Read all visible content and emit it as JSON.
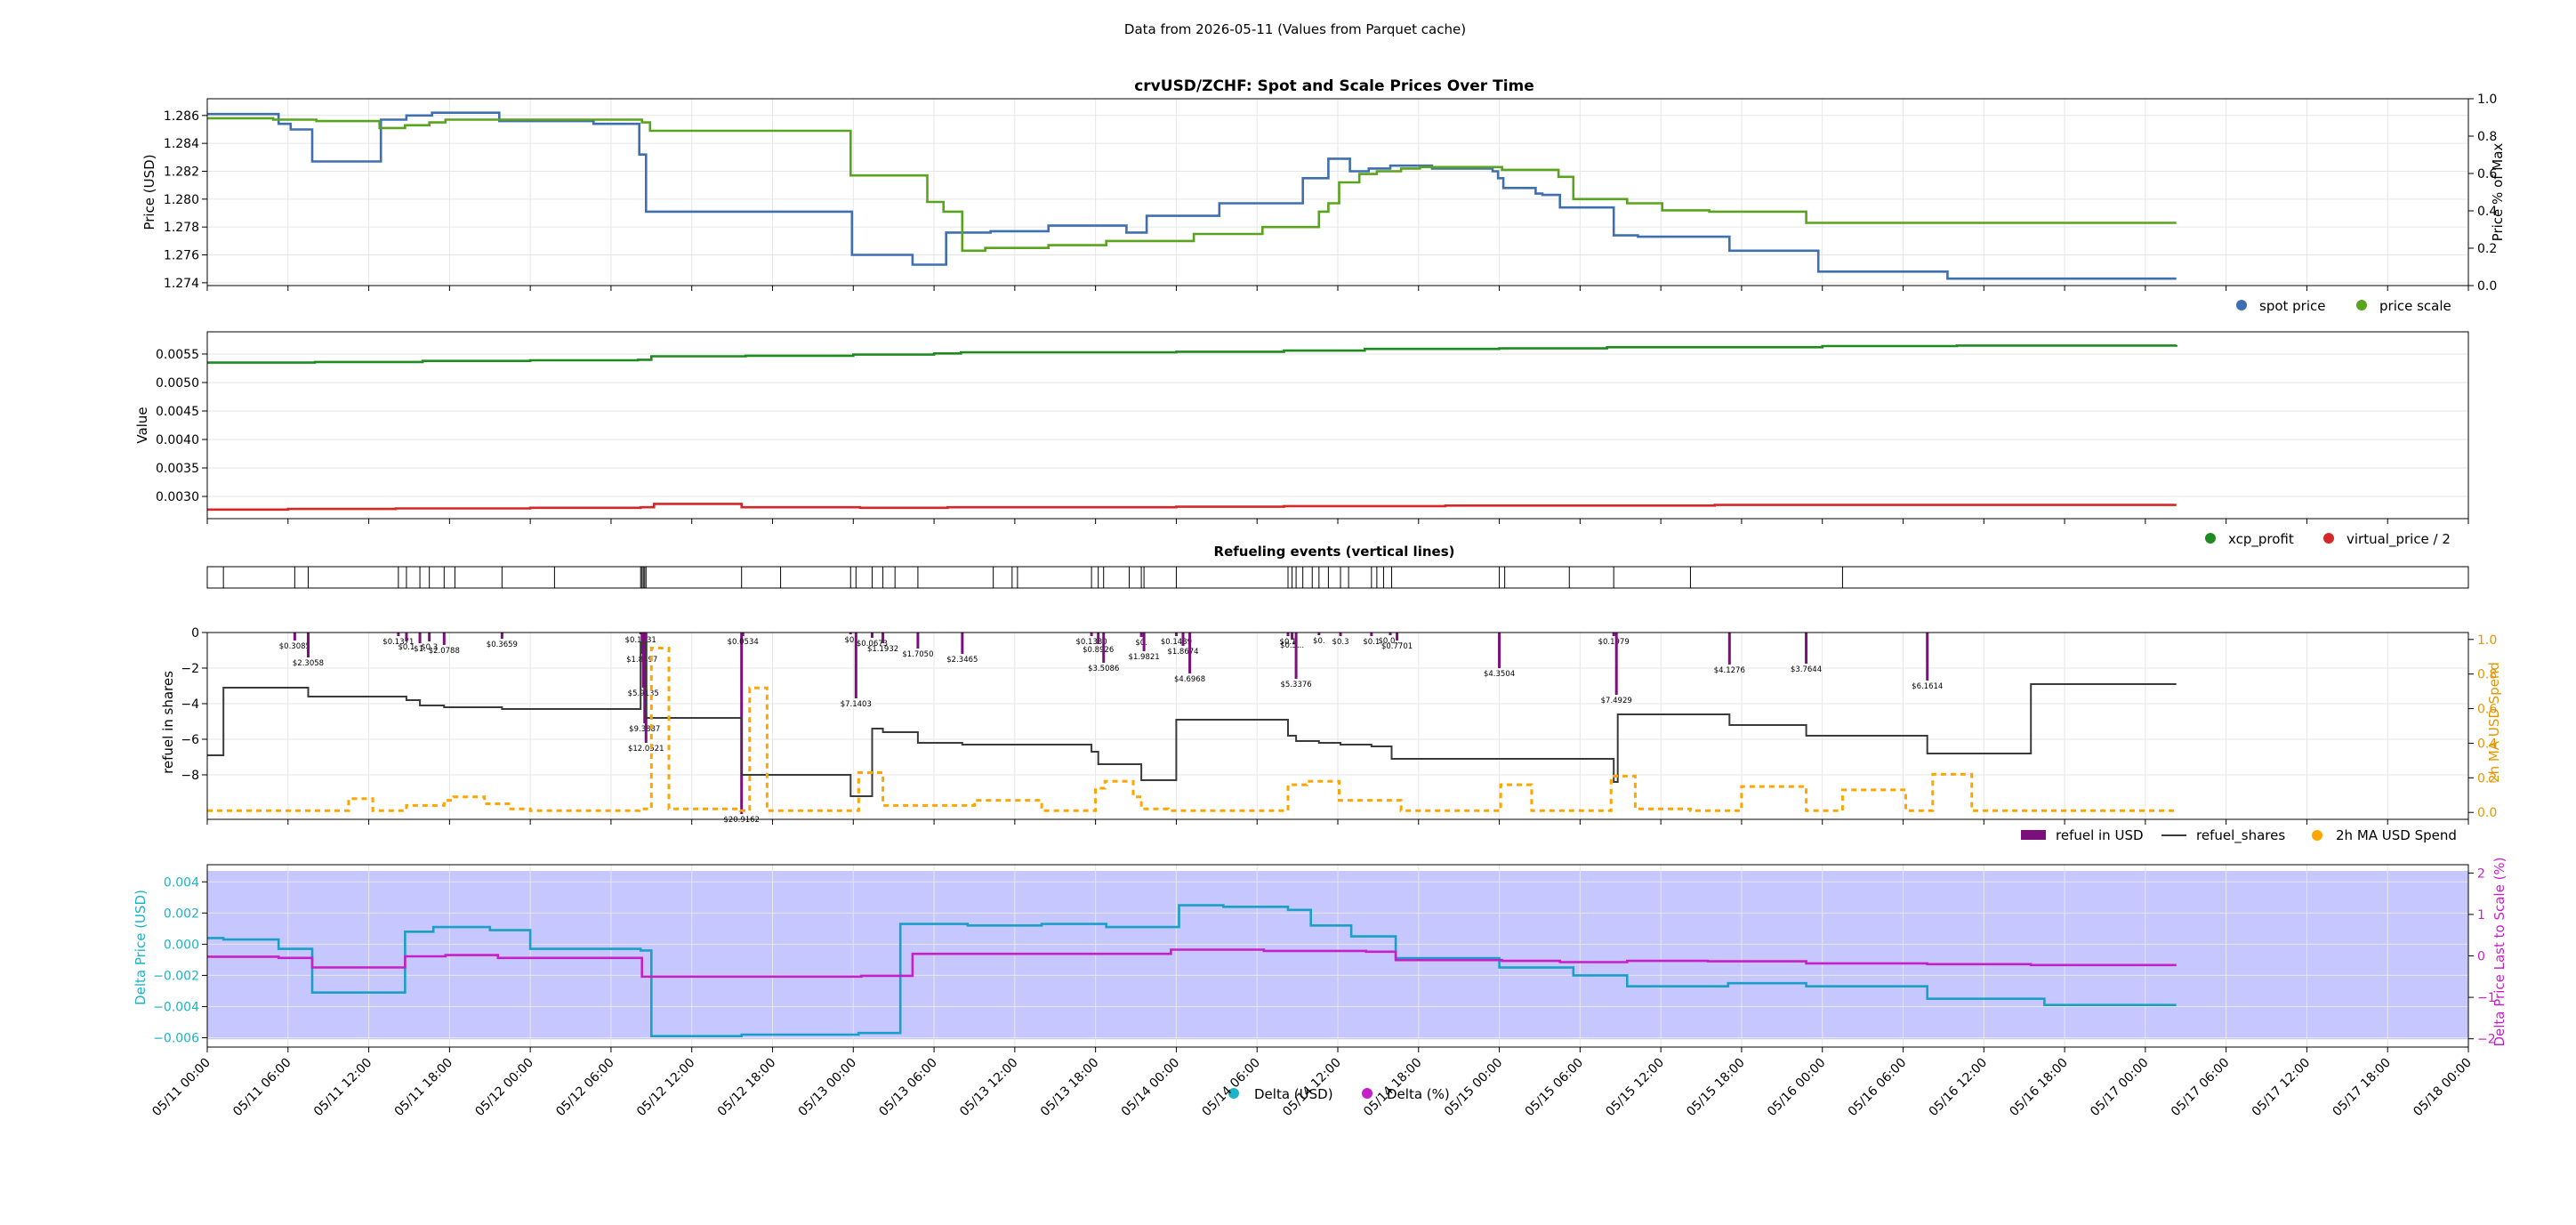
{
  "suptitle": "Data from 2026-05-11 (Values from Parquet cache)",
  "x_axis": {
    "ticks": [
      "05/11 00:00",
      "05/11 06:00",
      "05/11 12:00",
      "05/11 18:00",
      "05/12 00:00",
      "05/12 06:00",
      "05/12 12:00",
      "05/12 18:00",
      "05/13 00:00",
      "05/13 06:00",
      "05/13 12:00",
      "05/13 18:00",
      "05/14 00:00",
      "05/14 06:00",
      "05/14 12:00",
      "05/14 18:00",
      "05/15 00:00",
      "05/15 06:00",
      "05/15 12:00",
      "05/15 18:00",
      "05/16 00:00",
      "05/16 06:00",
      "05/16 12:00",
      "05/16 18:00",
      "05/17 00:00",
      "05/17 06:00",
      "05/17 12:00",
      "05/17 18:00",
      "05/18 00:00"
    ],
    "range_hours": [
      0,
      168
    ]
  },
  "chart_data": [
    {
      "type": "line",
      "title": "crvUSD/ZCHF: Spot and Scale Prices Over Time",
      "ylabel": "Price (USD)",
      "y2label": "Price % of Max",
      "ylim": [
        1.2738,
        1.2872
      ],
      "yticks": [
        "1.274",
        "1.276",
        "1.278",
        "1.280",
        "1.282",
        "1.284",
        "1.286"
      ],
      "y2lim": [
        0,
        1
      ],
      "y2ticks": [
        "0.0",
        "0.2",
        "0.4",
        "0.6",
        "0.8",
        "1.0"
      ],
      "grid": true,
      "legend": "bottom-right",
      "series": [
        {
          "name": "spot price",
          "color": "#3f6fb0",
          "step": true,
          "x": [
            0,
            5.3,
            6.2,
            7.8,
            12.9,
            14.8,
            16.7,
            21.7,
            28.7,
            32.1,
            32.6,
            39.6,
            47.9,
            48.6,
            49.2,
            52.4,
            54.9,
            58.2,
            62.5,
            63.9,
            66.5,
            68.3,
            69.8,
            71.2,
            75.2,
            81.4,
            83.3,
            84.9,
            86.3,
            87.9,
            91.0,
            95.5,
            95.9,
            96.3,
            96.9,
            98.7,
            99.2,
            100.5,
            104.5,
            106.3,
            113.1,
            119.7,
            129.3,
            135.5,
            146.3
          ],
          "y": [
            1.2861,
            1.2854,
            1.285,
            1.2827,
            1.2857,
            1.286,
            1.2862,
            1.2856,
            1.2854,
            1.2832,
            1.2791,
            1.2791,
            1.276,
            1.276,
            1.276,
            1.2753,
            1.2776,
            1.2777,
            1.2781,
            1.2781,
            1.2781,
            1.2776,
            1.2788,
            1.2788,
            1.2797,
            1.2815,
            1.2829,
            1.282,
            1.2822,
            1.2824,
            1.2822,
            1.282,
            1.2815,
            1.2808,
            1.2808,
            1.2804,
            1.2803,
            1.2794,
            1.2774,
            1.2773,
            1.2763,
            1.2748,
            1.2743,
            1.2743,
            1.2743
          ]
        },
        {
          "name": "price scale",
          "color": "#5aa31e",
          "step": true,
          "x": [
            0,
            4.9,
            8.1,
            12.8,
            14.7,
            16.5,
            17.7,
            21.5,
            32.3,
            32.9,
            39.7,
            47.8,
            53.5,
            54.7,
            56.1,
            57.8,
            62.5,
            66.8,
            70.2,
            73.3,
            78.4,
            82.6,
            83.3,
            84.1,
            85.6,
            86.9,
            88.7,
            90.1,
            96.2,
            100.4,
            101.5,
            105.5,
            108.1,
            111.6,
            118.8,
            135.5,
            146.3
          ],
          "y": [
            1.2858,
            1.2857,
            1.2856,
            1.2851,
            1.2853,
            1.2855,
            1.2857,
            1.2857,
            1.2855,
            1.2849,
            1.2849,
            1.2817,
            1.2798,
            1.2791,
            1.2763,
            1.2765,
            1.2767,
            1.277,
            1.277,
            1.2775,
            1.278,
            1.2791,
            1.2797,
            1.2812,
            1.2818,
            1.282,
            1.2822,
            1.2823,
            1.2821,
            1.2816,
            1.28,
            1.2797,
            1.2792,
            1.2791,
            1.2783,
            1.2783,
            1.2783
          ]
        }
      ]
    },
    {
      "type": "line",
      "ylabel": "Value",
      "ylim": [
        0.00261,
        0.00589
      ],
      "yticks": [
        "0.0030",
        "0.0035",
        "0.0040",
        "0.0045",
        "0.0050",
        "0.0055"
      ],
      "grid": true,
      "legend": "bottom-right",
      "series": [
        {
          "name": "xcp_profit",
          "color": "#1f8a1f",
          "step": true,
          "x": [
            0,
            8,
            16,
            24,
            32,
            33,
            40,
            48,
            54,
            56,
            64,
            72,
            80,
            86,
            96,
            104,
            112,
            120,
            130,
            146.3
          ],
          "y": [
            0.00535,
            0.00536,
            0.00538,
            0.00539,
            0.0054,
            0.00546,
            0.00547,
            0.00549,
            0.00551,
            0.00553,
            0.00553,
            0.00554,
            0.00556,
            0.00559,
            0.0056,
            0.00562,
            0.00562,
            0.00564,
            0.00565,
            0.00566
          ]
        },
        {
          "name": "virtual_price / 2",
          "color": "#d62728",
          "step": true,
          "x": [
            0,
            6,
            14,
            24,
            32.2,
            33.2,
            39.7,
            48.5,
            55,
            64,
            72,
            80,
            86,
            92,
            96,
            100,
            112,
            146.3
          ],
          "y": [
            0.00277,
            0.00278,
            0.00279,
            0.0028,
            0.00281,
            0.00287,
            0.00281,
            0.0028,
            0.00281,
            0.00281,
            0.00282,
            0.00283,
            0.00283,
            0.00284,
            0.00284,
            0.00284,
            0.00285,
            0.00285
          ]
        }
      ]
    },
    {
      "type": "events",
      "title": "Refueling events (vertical lines)",
      "x": [
        1.2,
        6.5,
        7.5,
        14.2,
        14.8,
        15.8,
        16.5,
        17.6,
        18.4,
        21.9,
        25.8,
        32.2,
        32.3,
        32.4,
        32.5,
        32.6,
        39.7,
        42.6,
        47.8,
        48.2,
        49.4,
        50.2,
        51.1,
        52.8,
        58.4,
        59.8,
        60.2,
        65.7,
        66.2,
        66.6,
        68.5,
        69.4,
        69.6,
        72.0,
        80.3,
        80.6,
        80.9,
        81.4,
        82.1,
        82.6,
        83.3,
        84.2,
        84.8,
        86.5,
        86.9,
        87.4,
        88.0,
        96.0,
        96.4,
        101.2,
        104.5,
        110.2,
        121.5
      ]
    },
    {
      "type": "bar",
      "ylabel": "refuel in shares",
      "y2label": "2h MA USD Spend",
      "ylim": [
        -10.5,
        0
      ],
      "yticks": [
        "0",
        "−2",
        "−4",
        "−6",
        "−8"
      ],
      "y2lim": [
        -0.04,
        1.04
      ],
      "y2ticks": [
        "0.0",
        "0.2",
        "0.4",
        "0.6",
        "0.8",
        "1.0"
      ],
      "grid": true,
      "legend": "bottom-right",
      "bar_color": "#7b0f7b",
      "refuel_bars": [
        {
          "x": 6.5,
          "depth": -0.45,
          "label": "$0.3085"
        },
        {
          "x": 7.5,
          "depth": -1.4,
          "label": "$2.3058"
        },
        {
          "x": 14.2,
          "depth": -0.2,
          "label": "$0.1371"
        },
        {
          "x": 14.8,
          "depth": -0.5,
          "label": "$0.1"
        },
        {
          "x": 15.8,
          "depth": -0.6,
          "label": "$1."
        },
        {
          "x": 16.5,
          "depth": -0.5,
          "label": "$0.3"
        },
        {
          "x": 17.6,
          "depth": -0.7,
          "label": "$2.0788"
        },
        {
          "x": 21.9,
          "depth": -0.35,
          "label": "$0.3659"
        },
        {
          "x": 32.2,
          "depth": -0.1,
          "label": "$0.1631"
        },
        {
          "x": 32.3,
          "depth": -1.2,
          "label": "$1.8497"
        },
        {
          "x": 32.4,
          "depth": -3.1,
          "label": "$5.9135"
        },
        {
          "x": 32.5,
          "depth": -5.1,
          "label": "$9.3887"
        },
        {
          "x": 32.6,
          "depth": -6.2,
          "label": "$12.0521"
        },
        {
          "x": 39.7,
          "depth": -10.2,
          "label": "$20.9162"
        },
        {
          "x": 39.8,
          "depth": -0.2,
          "label": "$0.0534"
        },
        {
          "x": 47.8,
          "depth": -0.1,
          "label": "$0."
        },
        {
          "x": 48.2,
          "depth": -3.7,
          "label": "$7.1403"
        },
        {
          "x": 49.4,
          "depth": -0.3,
          "label": "$0.0673"
        },
        {
          "x": 50.2,
          "depth": -0.6,
          "label": "$1.1932"
        },
        {
          "x": 52.8,
          "depth": -0.9,
          "label": "$1.7050"
        },
        {
          "x": 56.1,
          "depth": -1.2,
          "label": "$2.3465"
        },
        {
          "x": 65.7,
          "depth": -0.2,
          "label": "$0.1330"
        },
        {
          "x": 66.2,
          "depth": -0.65,
          "label": "$0.8926"
        },
        {
          "x": 66.6,
          "depth": -1.7,
          "label": "$3.5086"
        },
        {
          "x": 69.4,
          "depth": -0.25,
          "label": "$0."
        },
        {
          "x": 69.6,
          "depth": -1.05,
          "label": "$1.9821"
        },
        {
          "x": 72.0,
          "depth": -0.2,
          "label": "$0.1489"
        },
        {
          "x": 72.5,
          "depth": -0.75,
          "label": "$1.8674"
        },
        {
          "x": 73.0,
          "depth": -2.3,
          "label": "$4.6968"
        },
        {
          "x": 80.3,
          "depth": -0.2,
          "label": "$0.1"
        },
        {
          "x": 80.6,
          "depth": -0.4,
          "label": "$0.5..."
        },
        {
          "x": 80.9,
          "depth": -2.6,
          "label": "$5.3376"
        },
        {
          "x": 82.6,
          "depth": -0.15,
          "label": "$0."
        },
        {
          "x": 84.2,
          "depth": -0.2,
          "label": "$0.3"
        },
        {
          "x": 86.5,
          "depth": -0.2,
          "label": "$0.1"
        },
        {
          "x": 87.9,
          "depth": -0.15,
          "label": "$0.0..."
        },
        {
          "x": 88.4,
          "depth": -0.45,
          "label": "$0.7701"
        },
        {
          "x": 96.0,
          "depth": -2.0,
          "label": "$4.3504"
        },
        {
          "x": 104.5,
          "depth": -0.2,
          "label": "$0.1979"
        },
        {
          "x": 104.7,
          "depth": -3.5,
          "label": "$7.4929"
        },
        {
          "x": 113.1,
          "depth": -1.8,
          "label": "$4.1276"
        },
        {
          "x": 118.8,
          "depth": -1.75,
          "label": "$3.7644"
        },
        {
          "x": 127.8,
          "depth": -2.7,
          "label": "$6.1614"
        }
      ],
      "series": [
        {
          "name": "refuel in USD",
          "color": "#7b0f7b"
        },
        {
          "name": "refuel_shares",
          "color": "#3a3a3a",
          "step": true,
          "x": [
            0,
            1.2,
            6.5,
            7.5,
            14.2,
            14.8,
            15.8,
            16.5,
            17.6,
            21.9,
            22.2,
            32.2,
            32.6,
            39.7,
            47.8,
            49.4,
            50.2,
            52.8,
            56.1,
            65.7,
            66.2,
            69.4,
            72.0,
            78.1,
            80.3,
            80.9,
            82.6,
            84.2,
            86.5,
            88.0,
            96.0,
            104.5,
            104.8,
            113.1,
            118.8,
            127.8,
            135.5,
            146.3
          ],
          "y": [
            -6.9,
            -3.1,
            -3.1,
            -3.6,
            -3.6,
            -3.8,
            -4.1,
            -4.1,
            -4.2,
            -4.3,
            -4.3,
            -0.55,
            -4.8,
            -8.0,
            -9.2,
            -5.4,
            -5.6,
            -6.2,
            -6.3,
            -6.7,
            -7.4,
            -8.3,
            -4.9,
            -4.9,
            -5.8,
            -6.1,
            -6.2,
            -6.3,
            -6.4,
            -7.1,
            -7.1,
            -8.4,
            -4.6,
            -5.2,
            -5.8,
            -6.8,
            -2.9,
            -2.9
          ]
        },
        {
          "name": "2h MA USD Spend",
          "color": "#ffa500",
          "step": true,
          "x": [
            0,
            10.5,
            12.3,
            14.8,
            17.6,
            18.3,
            20.6,
            22.4,
            24,
            32.1,
            33,
            34.3,
            39.6,
            40.3,
            41.6,
            43.9,
            48.4,
            50.2,
            52.4,
            57,
            62,
            66,
            66.7,
            68.8,
            69.4,
            71.4,
            72.6,
            80.3,
            81.7,
            84.1,
            88.7,
            96.1,
            98.4,
            104.3,
            106.1,
            110.2,
            114,
            118.8,
            121.5,
            126.2,
            128.2,
            131.1,
            146.3
          ],
          "y": [
            0.01,
            0.08,
            0.01,
            0.04,
            0.07,
            0.09,
            0.05,
            0.02,
            0.01,
            0.02,
            0.95,
            0.02,
            0.01,
            0.72,
            0.01,
            0.01,
            0.23,
            0.04,
            0.04,
            0.07,
            0.01,
            0.14,
            0.18,
            0.09,
            0.02,
            0.01,
            0.01,
            0.16,
            0.18,
            0.07,
            0.01,
            0.16,
            0.01,
            0.21,
            0.02,
            0.01,
            0.15,
            0.01,
            0.13,
            0.01,
            0.22,
            0.01,
            0.01
          ]
        }
      ]
    },
    {
      "type": "line",
      "ylabel": "Delta Price (USD)",
      "y2label": "Delta Price Last to Scale (%)",
      "ylim": [
        -0.0066,
        0.0051
      ],
      "yticks": [
        "−0.006",
        "−0.004",
        "−0.002",
        "0.000",
        "0.002",
        "0.004"
      ],
      "y2lim": [
        -2.2,
        2.2
      ],
      "y2ticks": [
        "−2",
        "−1",
        "0",
        "1",
        "2"
      ],
      "grid": true,
      "legend": "bottom-center",
      "shaded_band": {
        "y1": -0.0061,
        "y2": 0.0047,
        "color": "#c7c7ff"
      },
      "series": [
        {
          "name": "Delta (USD)",
          "color": "#1aa0c8",
          "step": true,
          "x": [
            0,
            1.2,
            5.3,
            7.8,
            11.5,
            14.7,
            16.8,
            21,
            24,
            32.2,
            33,
            39.7,
            48.4,
            51.5,
            56.5,
            62,
            66,
            66.8,
            69.8,
            72.2,
            75.5,
            80.3,
            80.8,
            82,
            85,
            88.3,
            96,
            100.5,
            101.5,
            105.5,
            108,
            113,
            118.8,
            121.5,
            127.8,
            136.5,
            146.3
          ],
          "y": [
            0.0004,
            0.0003,
            -0.0003,
            -0.0031,
            -0.0031,
            0.0008,
            0.0011,
            0.0009,
            -0.0003,
            -0.0004,
            -0.0059,
            -0.0058,
            -0.0057,
            0.0013,
            0.0012,
            0.0013,
            0.0013,
            0.0011,
            0.0011,
            0.0025,
            0.0024,
            0.0022,
            0.0022,
            0.0012,
            0.0005,
            -0.0009,
            -0.0015,
            -0.0015,
            -0.002,
            -0.0027,
            -0.0027,
            -0.0025,
            -0.0027,
            -0.0027,
            -0.0035,
            -0.0039,
            -0.0039
          ]
        },
        {
          "name": "Delta (%)",
          "color": "#c71fc7",
          "step": true,
          "x": [
            0,
            5.3,
            7.8,
            12.8,
            14.7,
            17.7,
            21.6,
            32.3,
            39.7,
            48.6,
            52.4,
            62.5,
            68.8,
            71.6,
            78.5,
            86.1,
            88.3,
            96.2,
            100.5,
            105.5,
            111.5,
            118.8,
            127.8,
            135.5,
            146.3
          ],
          "y": [
            -0.02,
            -0.05,
            -0.28,
            -0.28,
            -0.01,
            0.02,
            -0.05,
            -0.5,
            -0.5,
            -0.48,
            0.05,
            0.05,
            0.05,
            0.15,
            0.12,
            0.1,
            -0.1,
            -0.12,
            -0.15,
            -0.12,
            -0.13,
            -0.18,
            -0.2,
            -0.22,
            -0.22
          ]
        }
      ]
    }
  ],
  "colors": {
    "grid": "#e6e6e6",
    "axis": "#000000",
    "cyan_label": "#1ab3c8",
    "magenta_label": "#c71fc7",
    "orange_label": "#e69500"
  }
}
